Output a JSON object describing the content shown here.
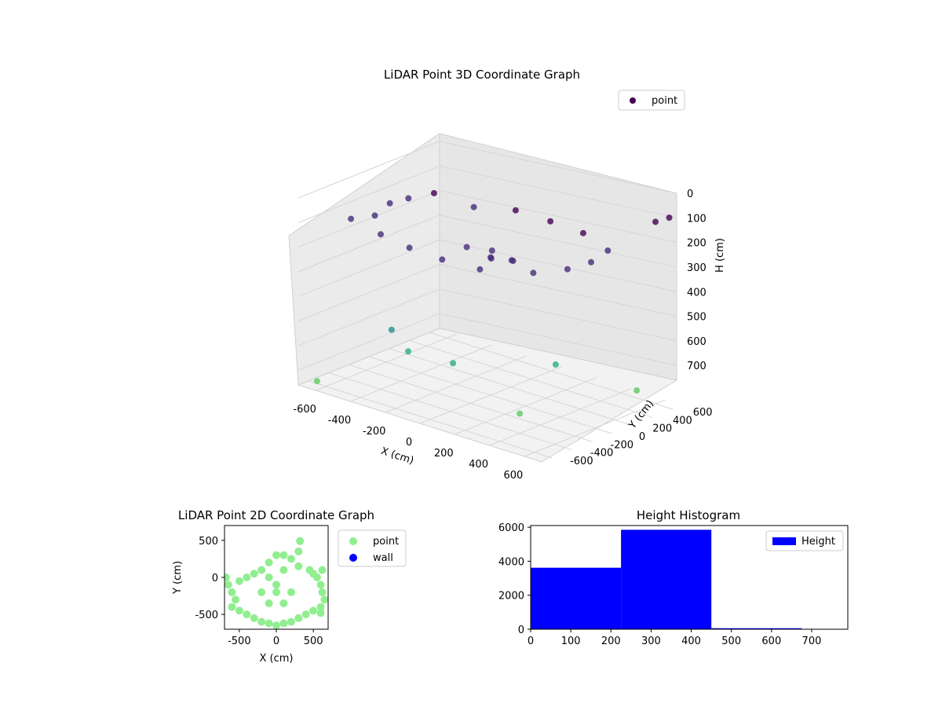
{
  "figure": {
    "background": "#ffffff"
  },
  "chart_data": [
    {
      "id": "scatter3d",
      "type": "scatter",
      "projection": "3d",
      "title": "LiDAR Point 3D Coordinate Graph",
      "xlabel": "X (cm)",
      "ylabel": "Y (cm)",
      "zlabel": "H (cm)",
      "xlim": [
        -700,
        700
      ],
      "ylim": [
        -700,
        700
      ],
      "zlim": [
        0,
        760
      ],
      "z_inverted": true,
      "xticks": [
        -600,
        -400,
        -200,
        0,
        200,
        400,
        600
      ],
      "yticks": [
        -600,
        -400,
        -200,
        0,
        200,
        400,
        600
      ],
      "zticks": [
        0,
        100,
        200,
        300,
        400,
        500,
        600,
        700
      ],
      "legend": {
        "entries": [
          "point"
        ],
        "placement": "top-right"
      },
      "colormap": "viridis",
      "grid": true,
      "series": [
        {
          "name": "point",
          "marker_color": "#440154",
          "structure_description": "ring of points at roughly 0-120 cm height around radius 450 cm, a dense mound near center up to 200 cm, scattered points at higher H",
          "points": [
            [
              -250,
              -550,
              460
            ],
            [
              -600,
              -350,
              120
            ],
            [
              -500,
              300,
              100
            ],
            [
              -300,
              350,
              120
            ],
            [
              -100,
              420,
              100
            ],
            [
              100,
              420,
              100
            ],
            [
              300,
              400,
              100
            ],
            [
              500,
              300,
              110
            ],
            [
              520,
              100,
              120
            ],
            [
              500,
              -100,
              120
            ],
            [
              420,
              -300,
              120
            ],
            [
              200,
              -450,
              130
            ],
            [
              0,
              -480,
              130
            ],
            [
              -200,
              -460,
              130
            ],
            [
              -400,
              -400,
              130
            ],
            [
              -550,
              -200,
              120
            ],
            [
              -580,
              0,
              110
            ],
            [
              -560,
              150,
              110
            ],
            [
              0,
              0,
              200
            ],
            [
              100,
              50,
              200
            ],
            [
              -50,
              100,
              200
            ],
            [
              50,
              -80,
              180
            ],
            [
              150,
              -50,
              170
            ],
            [
              -120,
              -30,
              180
            ],
            [
              -300,
              -300,
              600
            ],
            [
              -100,
              -200,
              620
            ],
            [
              200,
              300,
              640
            ],
            [
              400,
              -400,
              680
            ],
            [
              600,
              600,
              20
            ],
            [
              550,
              500,
              700
            ],
            [
              -650,
              -600,
              750
            ],
            [
              650,
              650,
              0
            ]
          ]
        }
      ]
    },
    {
      "id": "scatter2d",
      "type": "scatter",
      "title": "LiDAR Point 2D Coordinate Graph",
      "xlabel": "X (cm)",
      "ylabel": "Y (cm)",
      "xlim": [
        -700,
        700
      ],
      "ylim": [
        -700,
        700
      ],
      "xticks": [
        -500,
        0,
        500
      ],
      "yticks": [
        -500,
        0,
        500
      ],
      "legend": {
        "entries": [
          "point",
          "wall"
        ],
        "placement": "outside-right"
      },
      "series": [
        {
          "name": "point",
          "color": "#90ee90",
          "points": [
            [
              -680,
              0
            ],
            [
              -650,
              -100
            ],
            [
              -600,
              -200
            ],
            [
              -550,
              -300
            ],
            [
              -600,
              -400
            ],
            [
              -500,
              -450
            ],
            [
              -400,
              -500
            ],
            [
              -300,
              -550
            ],
            [
              -200,
              -600
            ],
            [
              -100,
              -620
            ],
            [
              0,
              -650
            ],
            [
              100,
              -620
            ],
            [
              200,
              -600
            ],
            [
              300,
              -550
            ],
            [
              400,
              -500
            ],
            [
              500,
              -450
            ],
            [
              600,
              -400
            ],
            [
              650,
              -300
            ],
            [
              620,
              -200
            ],
            [
              600,
              -100
            ],
            [
              550,
              0
            ],
            [
              500,
              50
            ],
            [
              450,
              100
            ],
            [
              300,
              150
            ],
            [
              200,
              250
            ],
            [
              100,
              300
            ],
            [
              0,
              300
            ],
            [
              -100,
              200
            ],
            [
              -200,
              100
            ],
            [
              -300,
              50
            ],
            [
              -400,
              0
            ],
            [
              -500,
              -50
            ],
            [
              -200,
              -200
            ],
            [
              0,
              -200
            ],
            [
              200,
              -200
            ],
            [
              -100,
              -350
            ],
            [
              100,
              -350
            ],
            [
              0,
              -100
            ],
            [
              100,
              100
            ],
            [
              -100,
              0
            ],
            [
              320,
              490
            ],
            [
              300,
              350
            ],
            [
              600,
              -480
            ],
            [
              620,
              100
            ]
          ]
        },
        {
          "name": "wall",
          "color": "#0000ff",
          "points": []
        }
      ]
    },
    {
      "id": "histogram",
      "type": "bar",
      "title": "Height Histogram",
      "xlabel": "",
      "ylabel": "",
      "xlim": [
        0,
        790
      ],
      "ylim": [
        0,
        6100
      ],
      "xticks": [
        0,
        100,
        200,
        300,
        400,
        500,
        600,
        700
      ],
      "yticks": [
        0,
        2000,
        4000,
        6000
      ],
      "legend": {
        "entries": [
          "Height"
        ],
        "placement": "top-right"
      },
      "series": [
        {
          "name": "Height",
          "color": "#0000ff",
          "bins": [
            {
              "start": 0,
              "end": 225,
              "count": 3620
            },
            {
              "start": 225,
              "end": 450,
              "count": 5850
            },
            {
              "start": 450,
              "end": 675,
              "count": 60
            },
            {
              "start": 675,
              "end": 900,
              "count": 25
            }
          ]
        }
      ]
    }
  ]
}
